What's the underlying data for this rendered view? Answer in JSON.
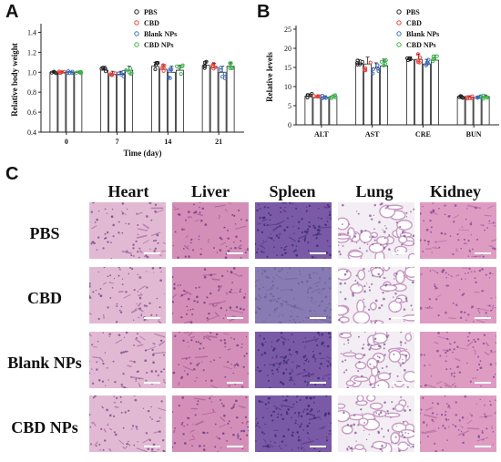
{
  "panels": {
    "a": "A",
    "b": "B",
    "c": "C"
  },
  "chart_data": [
    {
      "panel": "A",
      "type": "bar",
      "xlabel": "Time (day)",
      "ylabel": "Relative body weight",
      "categories": [
        "0",
        "7",
        "14",
        "21"
      ],
      "yticks": [
        "0.4",
        "0.6",
        "0.8",
        "1.0",
        "1.2",
        "1.4"
      ],
      "ylim": [
        0.4,
        1.45
      ],
      "grid": false,
      "legend_position": "top-right",
      "series": [
        {
          "name": "PBS",
          "color": "#222222",
          "values": [
            1.0,
            1.02,
            1.06,
            1.07
          ],
          "errors": [
            0.01,
            0.04,
            0.04,
            0.04
          ]
        },
        {
          "name": "CBD",
          "color": "#e8413c",
          "values": [
            1.0,
            0.98,
            1.03,
            1.05
          ],
          "errors": [
            0.01,
            0.03,
            0.05,
            0.04
          ]
        },
        {
          "name": "Blank NPs",
          "color": "#3c6fc0",
          "values": [
            1.0,
            0.98,
            1.0,
            1.0
          ],
          "errors": [
            0.01,
            0.03,
            0.06,
            0.06
          ]
        },
        {
          "name": "CBD NPs",
          "color": "#3cb44b",
          "values": [
            1.0,
            1.02,
            1.02,
            1.06
          ],
          "errors": [
            0.01,
            0.04,
            0.05,
            0.04
          ]
        }
      ]
    },
    {
      "panel": "B",
      "type": "bar",
      "xlabel": "",
      "ylabel": "Relative levels",
      "categories": [
        "ALT",
        "AST",
        "CRE",
        "BUN"
      ],
      "yticks": [
        "0",
        "5",
        "10",
        "15",
        "20",
        "25"
      ],
      "ylim": [
        0,
        25
      ],
      "grid": false,
      "legend_position": "top-right",
      "series": [
        {
          "name": "PBS",
          "color": "#222222",
          "values": [
            7.5,
            15.8,
            17.0,
            7.4
          ],
          "errors": [
            0.6,
            1.2,
            0.8,
            0.4
          ]
        },
        {
          "name": "CBD",
          "color": "#e8413c",
          "values": [
            7.1,
            15.9,
            17.1,
            7.2
          ],
          "errors": [
            0.5,
            1.8,
            1.4,
            0.4
          ]
        },
        {
          "name": "Blank NPs",
          "color": "#3c6fc0",
          "values": [
            7.2,
            14.8,
            15.9,
            7.1
          ],
          "errors": [
            0.4,
            1.4,
            1.2,
            0.4
          ]
        },
        {
          "name": "CBD NPs",
          "color": "#3cb44b",
          "values": [
            7.3,
            15.4,
            16.9,
            7.3
          ],
          "errors": [
            0.5,
            1.8,
            1.3,
            0.5
          ]
        }
      ]
    }
  ],
  "histology": {
    "organs": [
      "Heart",
      "Liver",
      "Spleen",
      "Lung",
      "Kidney"
    ],
    "groups": [
      "PBS",
      "CBD",
      "Blank NPs",
      "CBD NPs"
    ]
  }
}
